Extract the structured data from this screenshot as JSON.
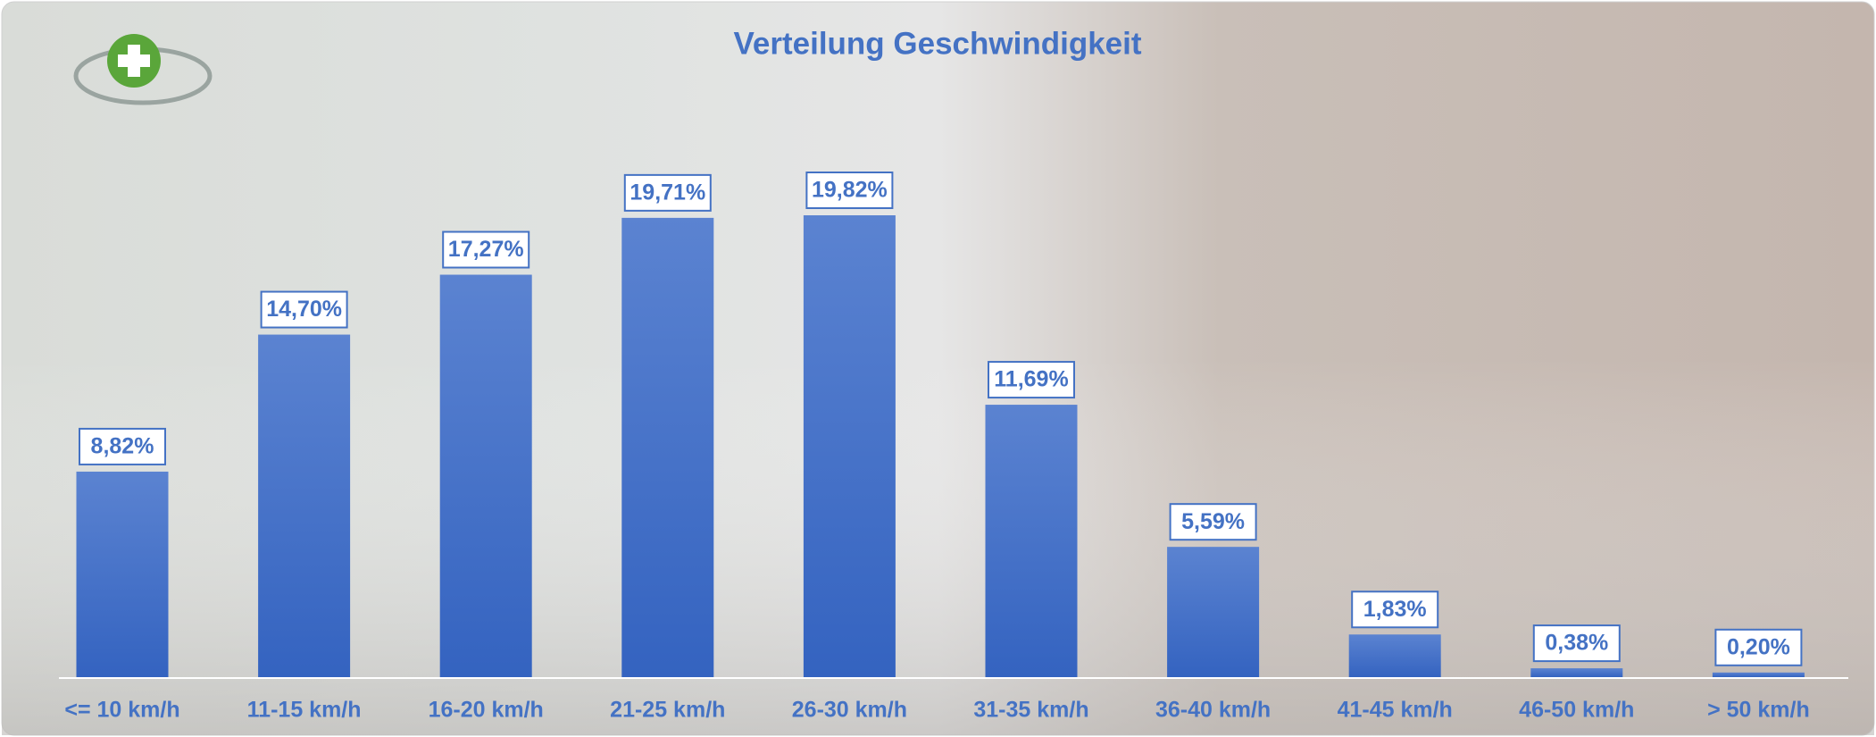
{
  "chart_data": {
    "type": "bar",
    "title": "Verteilung Geschwindigkeit",
    "categories": [
      "<= 10 km/h",
      "11-15 km/h",
      "16-20 km/h",
      "21-25 km/h",
      "26-30 km/h",
      "31-35 km/h",
      "36-40 km/h",
      "41-45 km/h",
      "46-50 km/h",
      "> 50 km/h"
    ],
    "values": [
      8.82,
      14.7,
      17.27,
      19.71,
      19.82,
      11.69,
      5.59,
      1.83,
      0.38,
      0.2
    ],
    "value_labels": [
      "8,82%",
      "14,70%",
      "17,27%",
      "19,71%",
      "19,82%",
      "11,69%",
      "5,59%",
      "1,83%",
      "0,38%",
      "0,20%"
    ],
    "color": "#4472c4"
  }
}
